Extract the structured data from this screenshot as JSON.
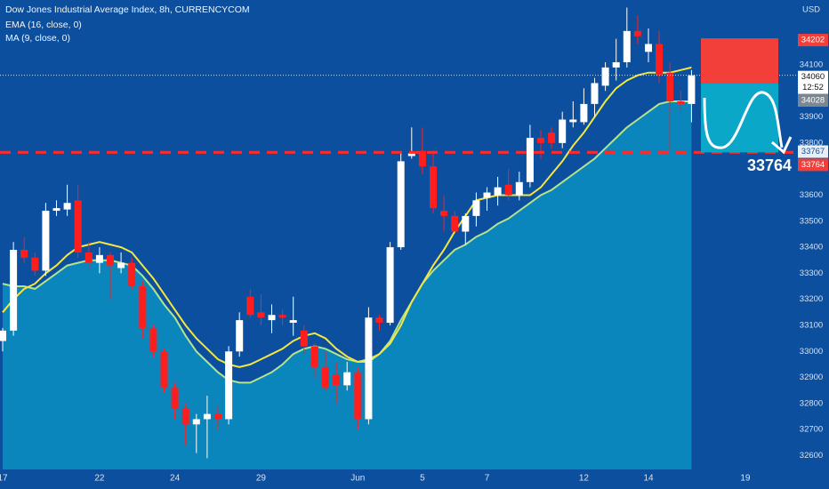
{
  "chart_data": {
    "type": "candlestick",
    "title": "Dow Jones Industrial Average Index, 8h, CURRENCYCOM",
    "currency": "USD",
    "categories": [
      "17",
      null,
      null,
      null,
      null,
      null,
      null,
      null,
      null,
      "22",
      null,
      null,
      null,
      null,
      null,
      null,
      "24",
      null,
      null,
      null,
      null,
      null,
      null,
      null,
      "29",
      null,
      null,
      null,
      null,
      null,
      null,
      null,
      null,
      "Jun",
      null,
      null,
      null,
      null,
      null,
      "5",
      null,
      null,
      null,
      null,
      null,
      "7",
      null,
      null,
      null,
      null,
      null,
      null,
      null,
      null,
      "12",
      null,
      null,
      null,
      null,
      null,
      "14",
      null,
      null,
      null,
      null,
      null,
      null,
      null,
      null,
      "19",
      null,
      null,
      null
    ],
    "open": [
      33040,
      33080,
      33390,
      33360,
      33310,
      33540,
      33545,
      33580,
      33380,
      33340,
      33370,
      33320,
      33340,
      33250,
      33090,
      33000,
      32860,
      32780,
      32720,
      32740,
      32760,
      32740,
      33000,
      33210,
      33150,
      33120,
      33140,
      33110,
      33080,
      33020,
      32940,
      32910,
      32870,
      32920,
      32740,
      33130,
      33110,
      33400,
      33750,
      33770,
      33710,
      33540,
      33520,
      33460,
      33520,
      33590,
      33600,
      33640,
      33600,
      33650,
      33820,
      33840,
      33800,
      33880,
      33880,
      33950,
      34020,
      34090,
      34110,
      34230,
      34150,
      34180,
      34070,
      33960,
      33950,
      null,
      null,
      null,
      null,
      null,
      null,
      null,
      null
    ],
    "high": [
      33090,
      33420,
      33440,
      33380,
      33570,
      33580,
      33640,
      33640,
      33420,
      33400,
      33380,
      33380,
      33360,
      33270,
      33100,
      33010,
      32880,
      32800,
      32760,
      32830,
      32790,
      33020,
      33150,
      33240,
      33220,
      33180,
      33160,
      33210,
      33100,
      33030,
      33000,
      32960,
      32960,
      32940,
      33170,
      33140,
      33420,
      33760,
      33860,
      33860,
      33770,
      33600,
      33540,
      33530,
      33610,
      33630,
      33670,
      33700,
      33690,
      33870,
      33850,
      33860,
      33920,
      33960,
      34010,
      34050,
      34110,
      34200,
      34320,
      34290,
      34240,
      34230,
      34110,
      34000,
      34080,
      null,
      null,
      null,
      null,
      null,
      null,
      null,
      null
    ],
    "low": [
      33000,
      33060,
      33340,
      33290,
      33290,
      33520,
      33520,
      33360,
      33320,
      33300,
      33200,
      33300,
      33240,
      33050,
      32980,
      32840,
      32740,
      32640,
      32610,
      32590,
      32700,
      32720,
      32980,
      33130,
      33100,
      33070,
      33100,
      33060,
      32990,
      32900,
      32850,
      32800,
      32850,
      32700,
      32720,
      33080,
      33100,
      33390,
      33740,
      33680,
      33530,
      33460,
      33460,
      33410,
      33480,
      33540,
      33560,
      33580,
      33580,
      33630,
      33740,
      33780,
      33780,
      33860,
      33870,
      33900,
      34000,
      34040,
      34090,
      34180,
      34110,
      34030,
      33770,
      33920,
      33880,
      null,
      null,
      null,
      null,
      null,
      null,
      null,
      null
    ],
    "close": [
      33080,
      33390,
      33360,
      33310,
      33540,
      33550,
      33570,
      33380,
      33340,
      33370,
      33330,
      33340,
      33250,
      33090,
      33000,
      32860,
      32780,
      32720,
      32740,
      32760,
      32740,
      33000,
      33120,
      33140,
      33130,
      33140,
      33130,
      33120,
      33020,
      32940,
      32860,
      32870,
      32920,
      32740,
      33130,
      33110,
      33400,
      33730,
      33760,
      33710,
      33550,
      33520,
      33460,
      33520,
      33580,
      33610,
      33630,
      33600,
      33650,
      33820,
      33800,
      33800,
      33890,
      33890,
      33950,
      34030,
      34090,
      34110,
      34230,
      34210,
      34180,
      34060,
      33960,
      33950,
      34060,
      null,
      null,
      null,
      null,
      null,
      null,
      null,
      null
    ],
    "up_color": "#ffffff",
    "down_color": "#ff1e1e",
    "indicators": [
      {
        "name": "EMA (16, close, 0)",
        "color": "#f5e642",
        "values": [
          33150,
          33200,
          33240,
          33260,
          33300,
          33330,
          33370,
          33400,
          33410,
          33420,
          33410,
          33400,
          33380,
          33330,
          33280,
          33220,
          33160,
          33100,
          33050,
          33010,
          32970,
          32950,
          32940,
          32950,
          32970,
          32990,
          33010,
          33040,
          33060,
          33070,
          33050,
          33010,
          32980,
          32960,
          32970,
          32990,
          33030,
          33100,
          33190,
          33260,
          33330,
          33390,
          33460,
          33520,
          33580,
          33590,
          33600,
          33600,
          33600,
          33600,
          33630,
          33680,
          33730,
          33790,
          33840,
          33900,
          33960,
          34010,
          34040,
          34060,
          34070,
          34070,
          34070,
          34080,
          34090,
          null,
          null,
          null,
          null,
          null,
          null,
          null,
          null
        ]
      },
      {
        "name": "MA (9, close, 0)",
        "color": "#b5e48c",
        "fill": "#0a8cc0",
        "values": [
          33260,
          33250,
          33250,
          33240,
          33270,
          33300,
          33330,
          33340,
          33350,
          33350,
          33350,
          33340,
          33330,
          33290,
          33240,
          33180,
          33130,
          33060,
          33000,
          32960,
          32920,
          32890,
          32880,
          32880,
          32900,
          32920,
          32950,
          32990,
          33010,
          33020,
          33010,
          32990,
          32970,
          32960,
          32960,
          32990,
          33040,
          33120,
          33190,
          33260,
          33310,
          33350,
          33390,
          33410,
          33440,
          33460,
          33490,
          33510,
          33540,
          33570,
          33600,
          33620,
          33650,
          33680,
          33710,
          33740,
          33780,
          33820,
          33860,
          33890,
          33920,
          33950,
          33960,
          33960,
          33960,
          null,
          null,
          null,
          null,
          null,
          null,
          null,
          null
        ]
      }
    ],
    "ylim": [
      32547,
      34349
    ],
    "yticks": [
      34100,
      33900,
      33800,
      33600,
      33500,
      33400,
      33300,
      33200,
      33100,
      33000,
      32900,
      32800,
      32700,
      32600
    ],
    "last_price": 34060,
    "countdown": "12:52",
    "marker_price": 33767,
    "position": {
      "stop": 34202,
      "entry": 34028,
      "target": 33764,
      "stop_color": "#f23f3a",
      "target_color": "#0aa7c9"
    }
  }
}
